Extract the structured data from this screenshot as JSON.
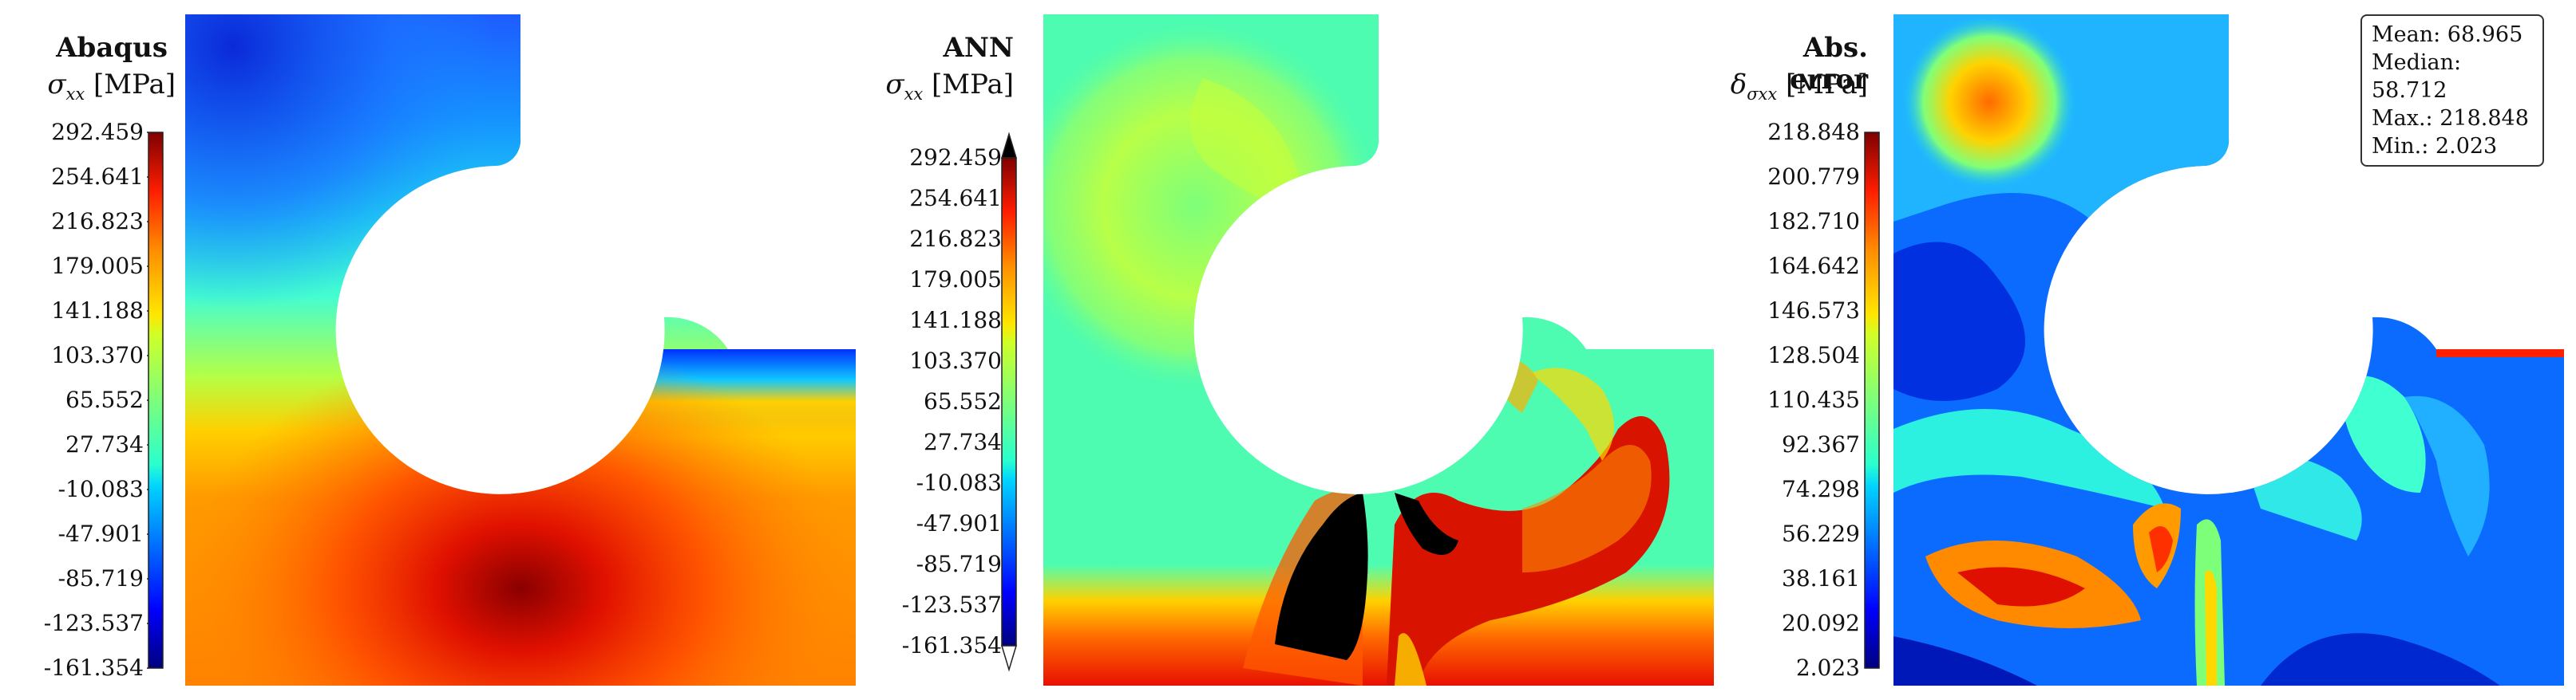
{
  "chart_data": [
    {
      "type": "heatmap",
      "title": "Abaqus",
      "quantity": "σ",
      "quantity_sub": "xx",
      "unit": "[MPa]",
      "colormap": "jet",
      "colorbar_ticks": [
        "292.459",
        "254.641",
        "216.823",
        "179.005",
        "141.188",
        "103.370",
        "65.552",
        "27.734",
        "-10.083",
        "-47.901",
        "-85.719",
        "-123.537",
        "-161.354"
      ],
      "range": [
        -161.354,
        292.459
      ]
    },
    {
      "type": "heatmap",
      "title": "ANN",
      "quantity": "σ",
      "quantity_sub": "xx",
      "unit": "[MPa]",
      "colormap": "jet",
      "colorbar_extensions": "both",
      "out_of_range_color": "#000000",
      "colorbar_ticks": [
        "292.459",
        "254.641",
        "216.823",
        "179.005",
        "141.188",
        "103.370",
        "65.552",
        "27.734",
        "-10.083",
        "-47.901",
        "-85.719",
        "-123.537",
        "-161.354"
      ],
      "range": [
        -161.354,
        292.459
      ]
    },
    {
      "type": "heatmap",
      "title": "Abs. error",
      "quantity": "δ",
      "quantity_sub": "σxx",
      "unit": "[MPa]",
      "colormap": "jet",
      "colorbar_ticks": [
        "218.848",
        "200.779",
        "182.710",
        "164.642",
        "146.573",
        "128.504",
        "110.435",
        "92.367",
        "74.298",
        "56.229",
        "38.161",
        "20.092",
        "2.023"
      ],
      "range": [
        2.023,
        218.848
      ],
      "stats": {
        "mean": "Mean: 68.965",
        "median": "Median: 58.712",
        "max": "Max.: 218.848",
        "min": "Min.: 2.023"
      }
    }
  ]
}
